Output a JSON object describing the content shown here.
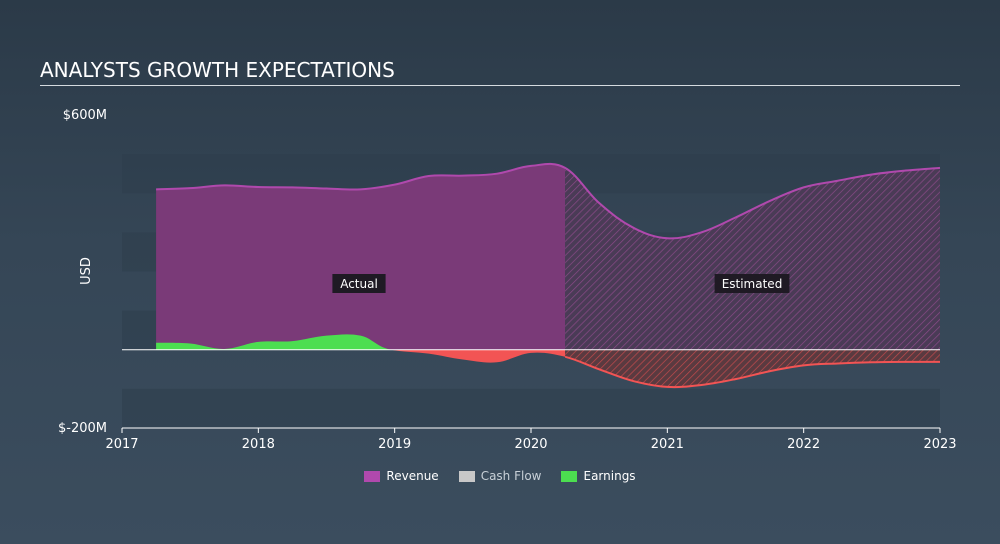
{
  "title": "ANALYSTS GROWTH EXPECTATIONS",
  "chart_data": {
    "type": "area",
    "ylabel": "USD",
    "y_tick_labels": [
      "$600M",
      "$-200M"
    ],
    "ylim": [
      -200,
      600
    ],
    "xlim": [
      2017,
      2023
    ],
    "x_tick_labels": [
      "2017",
      "2018",
      "2019",
      "2020",
      "2021",
      "2022",
      "2023"
    ],
    "actual_label": "Actual",
    "estimated_label": "Estimated",
    "forecast_start": 2020.25,
    "grid": true,
    "legend_position": "bottom-center",
    "series": [
      {
        "name": "Revenue",
        "color": "#7a3a78",
        "line_color": "#b049ad",
        "x": [
          2017.25,
          2017.5,
          2017.75,
          2018.0,
          2018.25,
          2018.5,
          2018.75,
          2019.0,
          2019.25,
          2019.5,
          2019.75,
          2020.0,
          2020.25,
          2020.5,
          2020.75,
          2021.0,
          2021.25,
          2021.5,
          2021.75,
          2022.0,
          2022.25,
          2022.5,
          2022.75,
          2023.0
        ],
        "values": [
          410,
          413,
          420,
          416,
          415,
          412,
          410,
          422,
          444,
          445,
          450,
          470,
          465,
          375,
          312,
          285,
          300,
          338,
          380,
          415,
          432,
          448,
          458,
          465
        ]
      },
      {
        "name": "Cash Flow",
        "color": "#c8c8c8",
        "x": [],
        "values": []
      },
      {
        "name": "Earnings",
        "color": "#4cde50",
        "negative_color": "#f25454",
        "x": [
          2017.25,
          2017.5,
          2017.75,
          2018.0,
          2018.25,
          2018.5,
          2018.75,
          2018.95,
          2019.25,
          2019.5,
          2019.75,
          2020.0,
          2020.25,
          2020.5,
          2020.75,
          2021.0,
          2021.25,
          2021.5,
          2021.75,
          2022.0,
          2022.25,
          2022.5,
          2022.75,
          2023.0
        ],
        "values": [
          18,
          16,
          2,
          20,
          22,
          36,
          36,
          2,
          -10,
          -25,
          -32,
          -8,
          -18,
          -50,
          -80,
          -95,
          -90,
          -75,
          -55,
          -40,
          -35,
          -32,
          -31,
          -31
        ]
      }
    ]
  },
  "legend": {
    "revenue_label": "Revenue",
    "cashflow_label": "Cash Flow",
    "earnings_label": "Earnings"
  }
}
